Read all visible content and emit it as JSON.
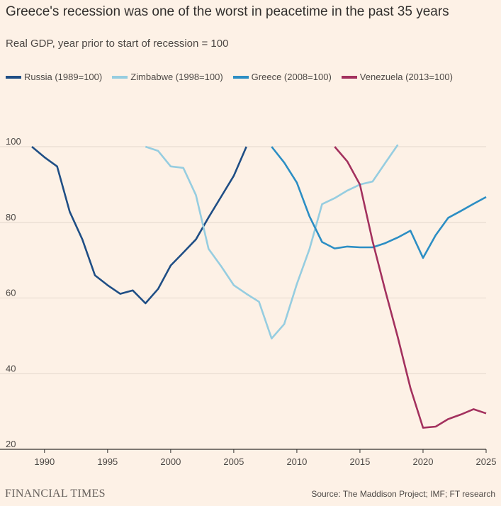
{
  "chart_data": {
    "type": "line",
    "title": "Greece's recession was one of the worst in peacetime in the past 35 years",
    "subtitle": "Real GDP, year prior to start of recession = 100",
    "xlabel": "",
    "ylabel": "",
    "xlim": [
      1989,
      2025
    ],
    "ylim": [
      20,
      100
    ],
    "x_ticks": [
      1990,
      1995,
      2000,
      2005,
      2010,
      2015,
      2020,
      2025
    ],
    "y_ticks": [
      20,
      40,
      60,
      80,
      100
    ],
    "grid": true,
    "legend_position": "top-left",
    "series": [
      {
        "name": "Russia (1989=100)",
        "color": "#1f4e85",
        "x": [
          1989,
          1990,
          1991,
          1992,
          1993,
          1994,
          1995,
          1996,
          1997,
          1998,
          1999,
          2000,
          2001,
          2002,
          2003,
          2004,
          2005,
          2006
        ],
        "values": [
          100,
          97.2,
          94.8,
          82.8,
          75.5,
          66,
          63.4,
          61.1,
          62,
          58.6,
          62.4,
          68.6,
          72,
          75.5,
          81.3,
          86.8,
          92.3,
          100
        ]
      },
      {
        "name": "Zimbabwe (1998=100)",
        "color": "#96cde0",
        "x": [
          1998,
          1999,
          2000,
          2001,
          2002,
          2003,
          2004,
          2005,
          2006,
          2007,
          2008,
          2009,
          2010,
          2011,
          2012,
          2013,
          2014,
          2015,
          2016,
          2017,
          2018
        ],
        "values": [
          100,
          98.9,
          94.8,
          94.4,
          87.2,
          73,
          68.4,
          63.4,
          61.1,
          59,
          49.3,
          53.1,
          63.7,
          72.9,
          84.8,
          86.4,
          88.4,
          90,
          90.8,
          95.7,
          100.5
        ]
      },
      {
        "name": "Greece (2008=100)",
        "color": "#2c8ec4",
        "x": [
          2008,
          2009,
          2010,
          2011,
          2012,
          2013,
          2014,
          2015,
          2016,
          2017,
          2018,
          2019,
          2020,
          2021,
          2022,
          2023,
          2024,
          2025
        ],
        "values": [
          100,
          95.8,
          90.5,
          81.6,
          74.8,
          73.1,
          73.6,
          73.4,
          73.4,
          74.5,
          76,
          77.8,
          70.6,
          76.6,
          81.2,
          83,
          84.9,
          86.7
        ]
      },
      {
        "name": "Venezuela (2013=100)",
        "color": "#a3315e",
        "x": [
          2013,
          2014,
          2015,
          2016,
          2017,
          2018,
          2019,
          2020,
          2021,
          2022,
          2023,
          2024,
          2025
        ],
        "values": [
          100,
          96.1,
          90,
          75,
          62,
          49.6,
          36.2,
          25.7,
          26,
          28,
          29.2,
          30.6,
          29.5
        ]
      }
    ]
  },
  "footer": {
    "brand": "FINANCIAL TIMES",
    "source": "Source: The Maddison Project; IMF; FT research"
  }
}
